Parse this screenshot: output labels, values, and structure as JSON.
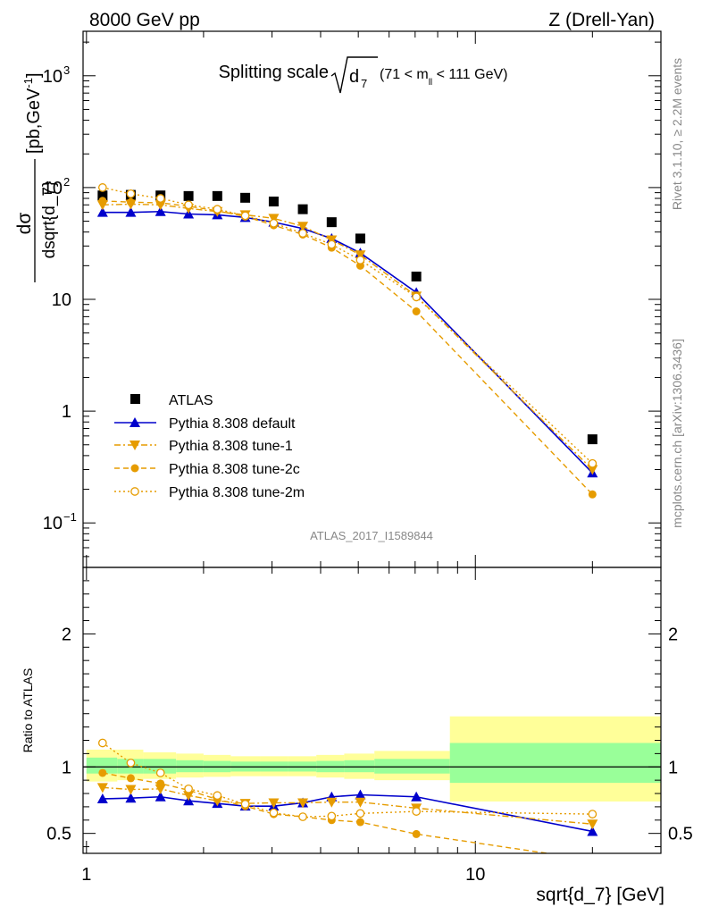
{
  "header": {
    "left_label": "8000 GeV pp",
    "right_label": "Z (Drell-Yan)",
    "title_main": "Splitting scale",
    "title_radicand": "d",
    "title_radicand_sub": "7",
    "title_cut_prefix": "(71 < m",
    "title_cut_sub": "ll",
    "title_cut_suffix": " < 111 GeV)"
  },
  "side_text": {
    "rivet": "Rivet 3.1.10, ≥ 2.2M events",
    "mcplots": "mcplots.cern.ch [arXiv:1306.3436]"
  },
  "watermark": "ATLAS_2017_I1589844",
  "colors": {
    "atlas": "#000000",
    "default": "#0000cc",
    "orange": "#e69c00",
    "band_inner": "#99ff99",
    "band_outer": "#ffff99"
  },
  "chart_data": [
    {
      "type": "line",
      "panel": "main",
      "ylabel_num": "dσ",
      "ylabel_den": "dsqrt{d_7}",
      "ylabel_unit": "[pb,GeV",
      "ylabel_unit_sup": "-1",
      "ylabel_unit_close": "]",
      "xscale": "log",
      "yscale": "log",
      "xlim": [
        0.98,
        30
      ],
      "ylim": [
        0.04,
        2500
      ],
      "yticks": [
        {
          "v": 0.1,
          "base": "10",
          "exp": "−1"
        },
        {
          "v": 1,
          "base": "1",
          "exp": ""
        },
        {
          "v": 10,
          "base": "10",
          "exp": ""
        },
        {
          "v": 100,
          "base": "10",
          "exp": "2"
        },
        {
          "v": 1000,
          "base": "10",
          "exp": "3"
        }
      ],
      "legend_position": "lower-left",
      "x": [
        1.1,
        1.3,
        1.55,
        1.83,
        2.17,
        2.56,
        3.03,
        3.6,
        4.27,
        5.06,
        7.05,
        20.0
      ],
      "series": [
        {
          "name": "ATLAS",
          "marker": "square",
          "line": "none",
          "values": [
            85,
            86,
            85,
            84,
            84,
            81,
            75,
            64,
            49,
            35,
            16,
            0.56
          ]
        },
        {
          "name": "Pythia 8.308 default",
          "marker": "triangle-up",
          "line": "solid",
          "values": [
            60,
            60,
            61,
            58,
            57,
            54,
            49,
            43,
            35,
            26,
            11.5,
            0.28
          ]
        },
        {
          "name": "Pythia 8.308 tune-1",
          "marker": "triangle-down",
          "line": "dashdot",
          "values": [
            70,
            71,
            70,
            65,
            61,
            57,
            53,
            45,
            34,
            25,
            10.7,
            0.3
          ]
        },
        {
          "name": "Pythia 8.308 tune-2c",
          "marker": "circle",
          "line": "dashed",
          "values": [
            76,
            74,
            73,
            68,
            62,
            55,
            46,
            38,
            29,
            20,
            7.8,
            0.18
          ]
        },
        {
          "name": "Pythia 8.308 tune-2m",
          "marker": "open-circle",
          "line": "dotted",
          "values": [
            100,
            88,
            80,
            70,
            64,
            56,
            48,
            39,
            31,
            22.5,
            10.5,
            0.34
          ]
        }
      ]
    },
    {
      "type": "line",
      "panel": "ratio",
      "xlabel": "sqrt{d_7} [GeV]",
      "ylabel": "Ratio to ATLAS",
      "xscale": "log",
      "xlim": [
        0.98,
        30
      ],
      "ylim": [
        0.35,
        2.5
      ],
      "yticks": [
        0.5,
        1,
        2
      ],
      "ytick_labels": [
        "0.5",
        "1",
        "2"
      ],
      "xticks": [
        1,
        10
      ],
      "xtick_labels": [
        "1",
        "10"
      ],
      "reference_line": 1,
      "band_edges": [
        1.0,
        1.2,
        1.4,
        1.7,
        2.0,
        2.35,
        2.8,
        3.3,
        3.9,
        4.6,
        5.5,
        8.6,
        30
      ],
      "band_inner_lo": [
        0.95,
        0.95,
        0.95,
        0.96,
        0.96,
        0.965,
        0.965,
        0.965,
        0.96,
        0.96,
        0.95,
        0.88
      ],
      "band_inner_hi": [
        1.07,
        1.06,
        1.06,
        1.05,
        1.045,
        1.04,
        1.04,
        1.04,
        1.045,
        1.05,
        1.06,
        1.18
      ],
      "band_outer_lo": [
        0.89,
        0.9,
        0.91,
        0.92,
        0.925,
        0.93,
        0.93,
        0.93,
        0.92,
        0.91,
        0.9,
        0.74
      ],
      "band_outer_hi": [
        1.13,
        1.13,
        1.11,
        1.1,
        1.09,
        1.08,
        1.08,
        1.08,
        1.09,
        1.1,
        1.12,
        1.38
      ],
      "x": [
        1.1,
        1.3,
        1.55,
        1.83,
        2.17,
        2.56,
        3.03,
        3.6,
        4.27,
        5.06,
        7.05,
        20.0
      ],
      "series": [
        {
          "name": "Pythia 8.308 default",
          "marker": "triangle-up",
          "line": "solid",
          "values": [
            0.76,
            0.765,
            0.775,
            0.745,
            0.725,
            0.705,
            0.705,
            0.73,
            0.775,
            0.79,
            0.775,
            0.515
          ]
        },
        {
          "name": "Pythia 8.308 tune-1",
          "marker": "triangle-down",
          "line": "dashdot",
          "values": [
            0.845,
            0.83,
            0.835,
            0.785,
            0.745,
            0.725,
            0.73,
            0.73,
            0.735,
            0.735,
            0.69,
            0.57
          ]
        },
        {
          "name": "Pythia 8.308 tune-2c",
          "marker": "circle",
          "line": "dashed",
          "values": [
            0.955,
            0.915,
            0.875,
            0.825,
            0.755,
            0.705,
            0.645,
            0.625,
            0.6,
            0.585,
            0.495,
            0.3
          ]
        },
        {
          "name": "Pythia 8.308 tune-2m",
          "marker": "open-circle",
          "line": "dotted",
          "values": [
            1.18,
            1.03,
            0.955,
            0.835,
            0.785,
            0.72,
            0.655,
            0.625,
            0.63,
            0.65,
            0.665,
            0.645
          ]
        }
      ]
    }
  ]
}
